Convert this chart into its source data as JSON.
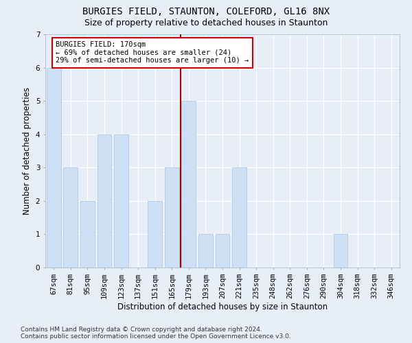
{
  "title": "BURGIES FIELD, STAUNTON, COLEFORD, GL16 8NX",
  "subtitle": "Size of property relative to detached houses in Staunton",
  "xlabel": "Distribution of detached houses by size in Staunton",
  "ylabel": "Number of detached properties",
  "categories": [
    "67sqm",
    "81sqm",
    "95sqm",
    "109sqm",
    "123sqm",
    "137sqm",
    "151sqm",
    "165sqm",
    "179sqm",
    "193sqm",
    "207sqm",
    "221sqm",
    "235sqm",
    "248sqm",
    "262sqm",
    "276sqm",
    "290sqm",
    "304sqm",
    "318sqm",
    "332sqm",
    "346sqm"
  ],
  "values": [
    6,
    3,
    2,
    4,
    4,
    0,
    2,
    3,
    5,
    1,
    1,
    3,
    0,
    0,
    0,
    0,
    0,
    1,
    0,
    0,
    0
  ],
  "bar_color": "#ccdff5",
  "bar_edgecolor": "#a8c4e0",
  "ref_line_color": "#aa0000",
  "ref_line_x": 7.5,
  "annotation_text": "BURGIES FIELD: 170sqm\n← 69% of detached houses are smaller (24)\n29% of semi-detached houses are larger (10) →",
  "annotation_box_edgecolor": "#cc0000",
  "ylim": [
    0,
    7
  ],
  "yticks": [
    0,
    1,
    2,
    3,
    4,
    5,
    6,
    7
  ],
  "fig_bg_color": "#e8eef8",
  "ax_bg_color": "#e8eef8",
  "grid_color": "#ffffff",
  "title_fontsize": 10,
  "subtitle_fontsize": 9,
  "xlabel_fontsize": 8.5,
  "ylabel_fontsize": 8.5,
  "tick_fontsize": 7.5,
  "annot_fontsize": 7.5,
  "footer_fontsize": 6.5,
  "footer_line1": "Contains HM Land Registry data © Crown copyright and database right 2024.",
  "footer_line2": "Contains public sector information licensed under the Open Government Licence v3.0."
}
